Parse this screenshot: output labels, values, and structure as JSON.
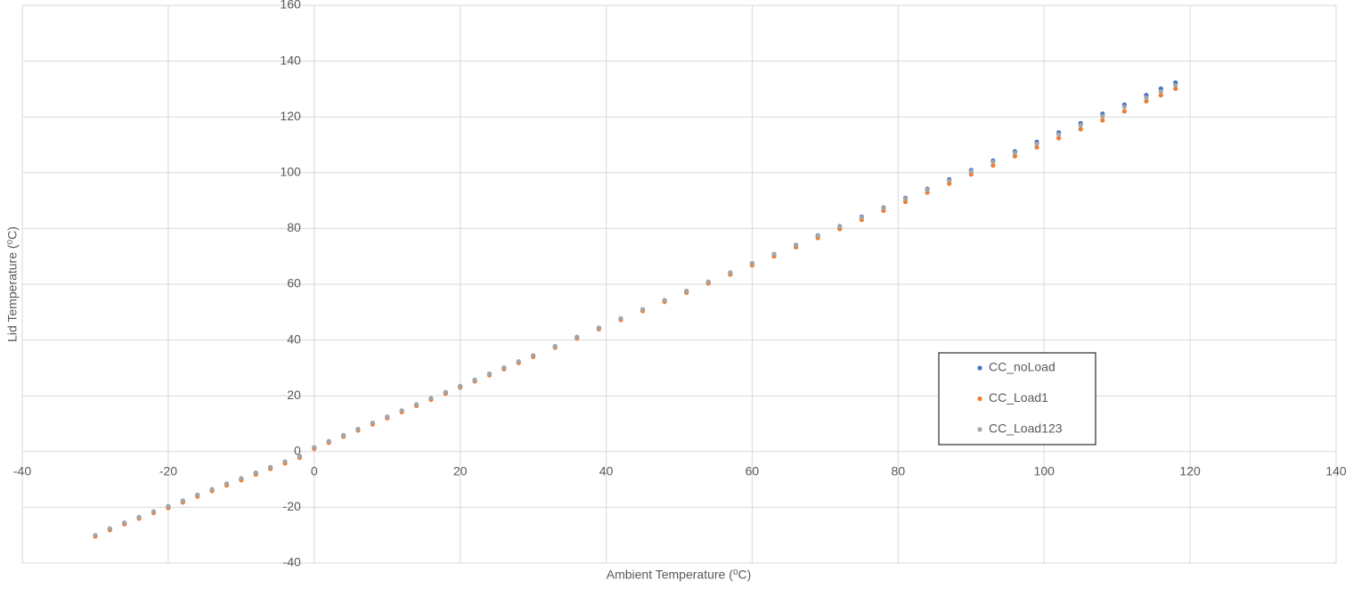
{
  "chart_data": {
    "type": "scatter",
    "x_label": "Ambient Temperature (⁰C)",
    "y_label": "Lid Temperature (⁰C)",
    "xlim": [
      -40,
      140
    ],
    "xticks": [
      -40,
      -20,
      0,
      20,
      40,
      60,
      80,
      100,
      120,
      140
    ],
    "ylim": [
      -40,
      160
    ],
    "yticks": [
      -40,
      -20,
      0,
      20,
      40,
      60,
      80,
      100,
      120,
      140,
      160
    ],
    "grid": true,
    "legend": "lower right",
    "x": [
      -30,
      -28,
      -26,
      -24,
      -22,
      -20,
      -18,
      -16,
      -14,
      -12,
      -10,
      -8,
      -6,
      -4,
      -2,
      0,
      2,
      4,
      6,
      8,
      10,
      12,
      14,
      16,
      18,
      20,
      22,
      24,
      26,
      28,
      30,
      33,
      36,
      39,
      42,
      45,
      48,
      51,
      54,
      57,
      60,
      63,
      66,
      69,
      72,
      75,
      78,
      81,
      84,
      87,
      90,
      93,
      96,
      99,
      102,
      105,
      108,
      111,
      114,
      116,
      118
    ],
    "series": [
      {
        "name": "CC_noLoad",
        "color": "#4472c4",
        "values": [
          -30.1,
          -27.7,
          -25.6,
          -23.6,
          -21.6,
          -19.7,
          -17.7,
          -15.6,
          -13.6,
          -11.6,
          -9.7,
          -7.7,
          -5.7,
          -3.7,
          -1.7,
          1.4,
          3.6,
          5.8,
          8.0,
          10.2,
          12.4,
          14.6,
          16.8,
          19.0,
          21.2,
          23.4,
          25.6,
          27.8,
          30.0,
          32.2,
          34.4,
          37.7,
          41.0,
          44.3,
          47.6,
          50.9,
          54.2,
          57.5,
          60.8,
          64.1,
          67.4,
          70.8,
          74.1,
          77.5,
          80.8,
          84.2,
          87.5,
          90.9,
          94.2,
          97.6,
          100.9,
          104.3,
          107.6,
          111.0,
          114.4,
          117.7,
          121.1,
          124.4,
          127.8,
          130.1,
          132.3
        ]
      },
      {
        "name": "CC_Load1",
        "color": "#ed7d31",
        "values": [
          -30.4,
          -28.1,
          -26.0,
          -24.0,
          -22.0,
          -20.2,
          -18.2,
          -16.1,
          -14.1,
          -12.1,
          -10.2,
          -8.2,
          -6.2,
          -4.2,
          -2.2,
          1.0,
          3.2,
          5.4,
          7.6,
          9.8,
          12.0,
          14.2,
          16.4,
          18.6,
          20.8,
          23.0,
          25.2,
          27.4,
          29.6,
          31.8,
          34.0,
          37.3,
          40.6,
          43.9,
          47.2,
          50.4,
          53.7,
          57.0,
          60.3,
          63.5,
          66.8,
          70.0,
          73.3,
          76.6,
          79.8,
          83.1,
          86.4,
          89.6,
          92.9,
          96.1,
          99.4,
          102.6,
          105.9,
          109.1,
          112.4,
          115.6,
          118.8,
          122.0,
          125.6,
          127.8,
          130.1
        ]
      },
      {
        "name": "CC_Load123",
        "color": "#a5a5a5",
        "values": [
          -30,
          -27.6,
          -25.5,
          -23.5,
          -21.5,
          -19.6,
          -17.6,
          -15.5,
          -13.5,
          -11.5,
          -9.6,
          -7.6,
          -5.6,
          -3.6,
          -1.6,
          1.5,
          3.7,
          5.9,
          8.1,
          10.3,
          12.5,
          14.7,
          16.9,
          19.1,
          21.3,
          23.5,
          25.7,
          27.9,
          30.1,
          32.3,
          34.5,
          37.8,
          41.1,
          44.4,
          47.7,
          51.0,
          54.3,
          57.6,
          60.9,
          64.2,
          67.5,
          70.8,
          74.1,
          77.4,
          80.7,
          84.0,
          87.3,
          90.6,
          93.9,
          97.2,
          100.5,
          103.8,
          107.1,
          110.4,
          113.7,
          117.0,
          120.3,
          123.6,
          126.9,
          129.1,
          131.3
        ]
      }
    ]
  }
}
